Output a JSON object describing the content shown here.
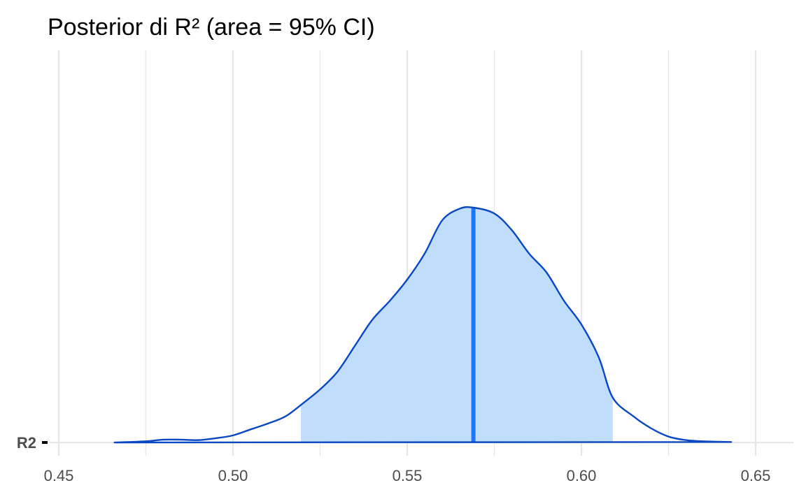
{
  "chart_data": {
    "type": "area",
    "title": "Posterior di R² (area = 95% CI)",
    "xlabel": "",
    "ylabel": "",
    "xlim": [
      0.45,
      0.65
    ],
    "x_ticks": [
      "0.45",
      "0.50",
      "0.55",
      "0.60",
      "0.65"
    ],
    "x_tick_values": [
      0.45,
      0.5,
      0.55,
      0.6,
      0.65
    ],
    "y_ticks": [
      "R2"
    ],
    "grid": true,
    "legend": "none",
    "series": [
      {
        "name": "R2",
        "x": [
          0.466,
          0.475,
          0.48,
          0.485,
          0.49,
          0.495,
          0.5,
          0.505,
          0.51,
          0.515,
          0.52,
          0.525,
          0.53,
          0.535,
          0.54,
          0.545,
          0.55,
          0.555,
          0.56,
          0.565,
          0.569,
          0.575,
          0.58,
          0.585,
          0.59,
          0.595,
          0.6,
          0.605,
          0.609,
          0.615,
          0.62,
          0.625,
          0.63,
          0.635,
          0.643
        ],
        "density": [
          0.0,
          0.005,
          0.012,
          0.012,
          0.01,
          0.018,
          0.03,
          0.055,
          0.08,
          0.11,
          0.165,
          0.225,
          0.3,
          0.41,
          0.52,
          0.6,
          0.69,
          0.8,
          0.94,
          0.99,
          0.995,
          0.97,
          0.9,
          0.8,
          0.72,
          0.6,
          0.5,
          0.36,
          0.19,
          0.11,
          0.06,
          0.025,
          0.01,
          0.005,
          0.002
        ]
      }
    ],
    "ci_95": [
      0.5195,
      0.609
    ],
    "point_estimate": 0.569,
    "colors": {
      "fill": "#c1ddfc",
      "outline": "#0a47c2",
      "median_line": "#1f77f4",
      "grid": "#e6e6e6",
      "baseline": "#e6e6e6"
    }
  }
}
